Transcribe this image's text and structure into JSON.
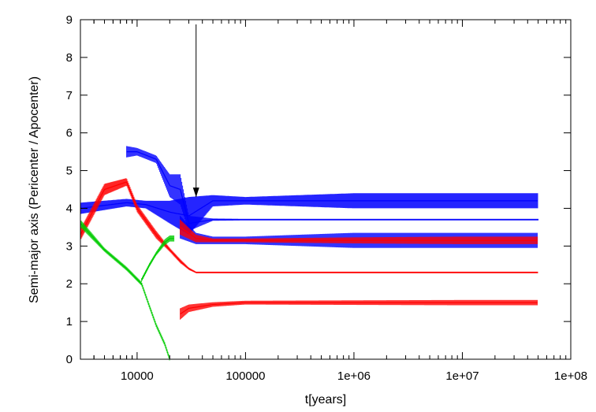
{
  "chart_data": {
    "type": "scatter",
    "xlabel": "t[years]",
    "ylabel": "Semi-major axis (Pericenter / Apocenter)",
    "x_scale": "log",
    "xlim": [
      3000,
      100000000
    ],
    "ylim": [
      0,
      9
    ],
    "x_ticks": [
      {
        "value": 10000,
        "label": "10000"
      },
      {
        "value": 100000,
        "label": "100000"
      },
      {
        "value": 1000000,
        "label": "1e+06"
      },
      {
        "value": 10000000,
        "label": "1e+07"
      },
      {
        "value": 100000000,
        "label": "1e+08"
      }
    ],
    "y_ticks": [
      {
        "value": 0,
        "label": "0"
      },
      {
        "value": 1,
        "label": "1"
      },
      {
        "value": 2,
        "label": "2"
      },
      {
        "value": 3,
        "label": "3"
      },
      {
        "value": 4,
        "label": "4"
      },
      {
        "value": 5,
        "label": "5"
      },
      {
        "value": 6,
        "label": "6"
      },
      {
        "value": 7,
        "label": "7"
      },
      {
        "value": 8,
        "label": "8"
      },
      {
        "value": 9,
        "label": "9"
      }
    ],
    "grid": false,
    "series": [
      {
        "color": "#0000ff",
        "bands": [
          {
            "x": [
              3000,
              8000,
              12000,
              20000,
              30000,
              50000,
              100000,
              1000000,
              10000000,
              50000000
            ],
            "y": [
              4.0,
              4.15,
              4.1,
              3.9,
              3.8,
              4.2,
              4.2,
              4.2,
              4.2,
              4.2
            ],
            "spread": [
              0.15,
              0.1,
              0.1,
              0.3,
              0.5,
              0.15,
              0.1,
              0.2,
              0.2,
              0.2
            ]
          },
          {
            "x": [
              8000,
              10000,
              15000,
              20000,
              25000,
              30000,
              50000,
              100000,
              1000000,
              10000000,
              50000000
            ],
            "y": [
              5.5,
              5.5,
              5.3,
              4.6,
              4.5,
              3.6,
              3.7,
              3.7,
              3.7,
              3.7,
              3.7
            ],
            "spread": [
              0.15,
              0.1,
              0.1,
              0.3,
              0.4,
              0.2,
              0.03,
              0.02,
              0.02,
              0.02,
              0.02
            ]
          },
          {
            "x": [
              25000,
              35000,
              50000,
              100000,
              1000000,
              10000000,
              50000000
            ],
            "y": [
              3.5,
              3.2,
              3.15,
              3.15,
              3.15,
              3.15,
              3.15
            ],
            "spread": [
              0.3,
              0.15,
              0.1,
              0.1,
              0.2,
              0.2,
              0.2
            ]
          }
        ]
      },
      {
        "color": "#ff0000",
        "bands": [
          {
            "x": [
              3000,
              5000,
              8000,
              10000,
              15000,
              20000,
              25000,
              30000,
              35000,
              100000,
              1000000,
              10000000,
              50000000
            ],
            "y": [
              3.3,
              4.5,
              4.7,
              4.0,
              3.3,
              2.9,
              2.6,
              2.4,
              2.3,
              2.3,
              2.3,
              2.3,
              2.3
            ],
            "spread": [
              0.15,
              0.15,
              0.1,
              0.1,
              0.1,
              0.05,
              0.05,
              0.03,
              0.02,
              0.01,
              0.01,
              0.01,
              0.01
            ]
          },
          {
            "x": [
              25000,
              30000,
              50000,
              100000,
              1000000,
              10000000,
              50000000
            ],
            "y": [
              1.2,
              1.35,
              1.45,
              1.5,
              1.5,
              1.5,
              1.5
            ],
            "spread": [
              0.15,
              0.1,
              0.06,
              0.05,
              0.06,
              0.07,
              0.07
            ]
          },
          {
            "x": [
              25000,
              35000,
              50000,
              100000,
              1000000,
              10000000,
              50000000
            ],
            "y": [
              3.5,
              3.2,
              3.15,
              3.15,
              3.15,
              3.15,
              3.15
            ],
            "spread": [
              0.2,
              0.1,
              0.05,
              0.05,
              0.08,
              0.1,
              0.1
            ]
          }
        ]
      },
      {
        "color": "#00cc00",
        "bands": [
          {
            "x": [
              3000,
              5000,
              8000,
              11000,
              13000,
              15000,
              18000,
              20000
            ],
            "y": [
              3.6,
              2.9,
              2.4,
              2.0,
              1.4,
              0.9,
              0.4,
              0.0
            ],
            "spread": [
              0.1,
              0.05,
              0.05,
              0.05,
              0.05,
              0.05,
              0.05,
              0.05
            ]
          },
          {
            "x": [
              11000,
              13000,
              15000,
              18000,
              20000,
              22000
            ],
            "y": [
              2.1,
              2.5,
              2.8,
              3.1,
              3.2,
              3.2
            ],
            "spread": [
              0.05,
              0.05,
              0.05,
              0.08,
              0.08,
              0.08
            ]
          }
        ]
      }
    ],
    "annotations": [
      {
        "type": "arrow",
        "x": 35000,
        "y_from": 9.0,
        "y_to": 4.3
      }
    ]
  }
}
